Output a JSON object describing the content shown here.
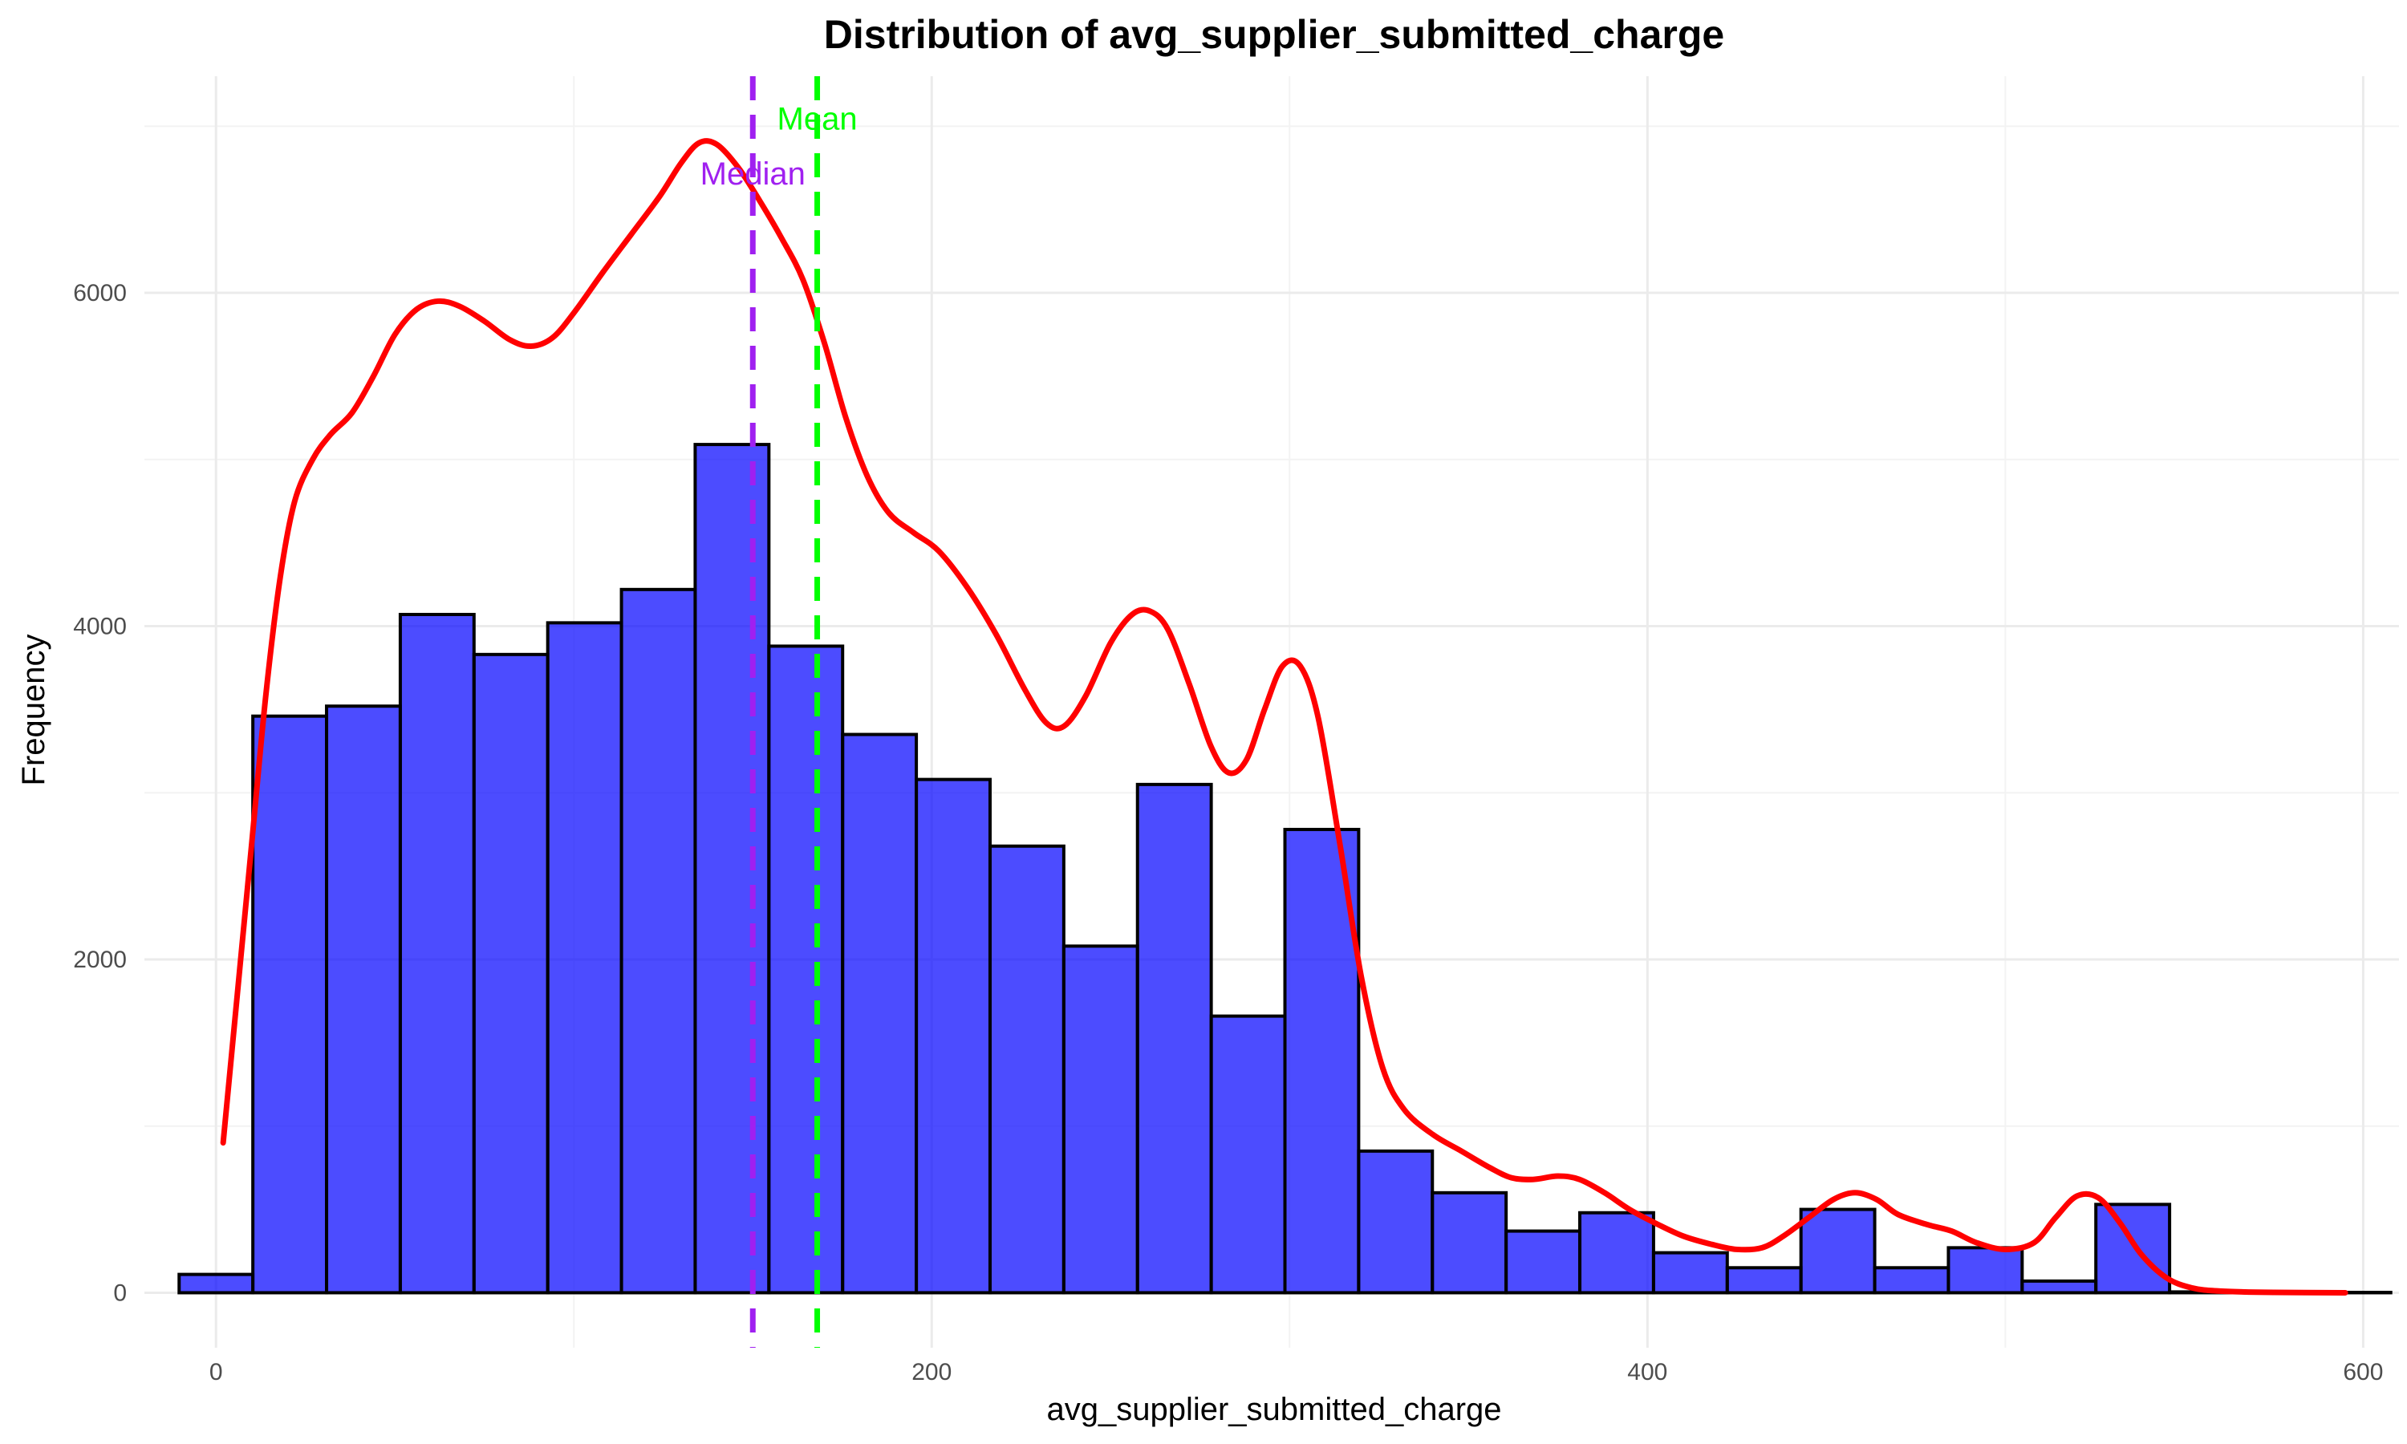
{
  "chart_data": {
    "type": "bar",
    "title": "Distribution of avg_supplier_submitted_charge",
    "xlabel": "avg_supplier_submitted_charge",
    "ylabel": "Frequency",
    "xlim": [
      -20,
      610
    ],
    "ylim": [
      -330,
      7300
    ],
    "x_ticks": [
      0,
      200,
      400,
      600
    ],
    "y_ticks": [
      0,
      2000,
      4000,
      6000
    ],
    "x_tick_labels": [
      "0",
      "200",
      "400",
      "600"
    ],
    "y_tick_labels": [
      "0",
      "2000",
      "4000",
      "6000"
    ],
    "grid": true,
    "bar_color": "#0000FF",
    "bar_opacity": 0.7,
    "bin_width": 20.6,
    "bins": [
      {
        "start": -10.3,
        "end": 10.3,
        "count": 110
      },
      {
        "start": 10.3,
        "end": 30.9,
        "count": 3460
      },
      {
        "start": 30.9,
        "end": 51.5,
        "count": 3520
      },
      {
        "start": 51.5,
        "end": 72.1,
        "count": 4070
      },
      {
        "start": 72.1,
        "end": 92.7,
        "count": 3830
      },
      {
        "start": 92.7,
        "end": 113.3,
        "count": 4020
      },
      {
        "start": 113.3,
        "end": 133.9,
        "count": 4220
      },
      {
        "start": 133.9,
        "end": 154.5,
        "count": 5090
      },
      {
        "start": 154.5,
        "end": 175.1,
        "count": 3880
      },
      {
        "start": 175.1,
        "end": 195.7,
        "count": 3350
      },
      {
        "start": 195.7,
        "end": 216.3,
        "count": 3080
      },
      {
        "start": 216.3,
        "end": 236.9,
        "count": 2680
      },
      {
        "start": 236.9,
        "end": 257.5,
        "count": 2080
      },
      {
        "start": 257.5,
        "end": 278.1,
        "count": 3050
      },
      {
        "start": 278.1,
        "end": 298.7,
        "count": 1660
      },
      {
        "start": 298.7,
        "end": 319.3,
        "count": 2780
      },
      {
        "start": 319.3,
        "end": 339.9,
        "count": 850
      },
      {
        "start": 339.9,
        "end": 360.5,
        "count": 600
      },
      {
        "start": 360.5,
        "end": 381.1,
        "count": 370
      },
      {
        "start": 381.1,
        "end": 401.7,
        "count": 480
      },
      {
        "start": 401.7,
        "end": 422.3,
        "count": 240
      },
      {
        "start": 422.3,
        "end": 442.9,
        "count": 150
      },
      {
        "start": 442.9,
        "end": 463.5,
        "count": 500
      },
      {
        "start": 463.5,
        "end": 484.1,
        "count": 150
      },
      {
        "start": 484.1,
        "end": 504.7,
        "count": 270
      },
      {
        "start": 504.7,
        "end": 525.3,
        "count": 70
      },
      {
        "start": 525.3,
        "end": 545.9,
        "count": 530
      },
      {
        "start": 545.9,
        "end": 566.5,
        "count": 5
      },
      {
        "start": 566.5,
        "end": 587.1,
        "count": 3
      },
      {
        "start": 587.1,
        "end": 607.7,
        "count": 2
      }
    ],
    "density_curve": {
      "color": "#FF0000",
      "points": [
        [
          2,
          900
        ],
        [
          6,
          1800
        ],
        [
          10,
          2700
        ],
        [
          14,
          3600
        ],
        [
          18,
          4300
        ],
        [
          22,
          4750
        ],
        [
          27,
          5000
        ],
        [
          32,
          5150
        ],
        [
          38,
          5280
        ],
        [
          44,
          5500
        ],
        [
          50,
          5750
        ],
        [
          56,
          5900
        ],
        [
          62,
          5950
        ],
        [
          68,
          5920
        ],
        [
          75,
          5830
        ],
        [
          82,
          5720
        ],
        [
          88,
          5680
        ],
        [
          94,
          5730
        ],
        [
          100,
          5880
        ],
        [
          108,
          6120
        ],
        [
          116,
          6350
        ],
        [
          124,
          6580
        ],
        [
          130,
          6780
        ],
        [
          135,
          6900
        ],
        [
          140,
          6890
        ],
        [
          146,
          6750
        ],
        [
          152,
          6550
        ],
        [
          158,
          6330
        ],
        [
          164,
          6080
        ],
        [
          170,
          5700
        ],
        [
          176,
          5250
        ],
        [
          182,
          4900
        ],
        [
          188,
          4680
        ],
        [
          195,
          4560
        ],
        [
          202,
          4450
        ],
        [
          210,
          4230
        ],
        [
          218,
          3950
        ],
        [
          226,
          3620
        ],
        [
          232,
          3420
        ],
        [
          237,
          3400
        ],
        [
          243,
          3580
        ],
        [
          250,
          3900
        ],
        [
          256,
          4070
        ],
        [
          261,
          4090
        ],
        [
          266,
          3980
        ],
        [
          272,
          3650
        ],
        [
          278,
          3280
        ],
        [
          283,
          3120
        ],
        [
          288,
          3200
        ],
        [
          293,
          3500
        ],
        [
          298,
          3760
        ],
        [
          303,
          3760
        ],
        [
          308,
          3450
        ],
        [
          314,
          2700
        ],
        [
          320,
          1900
        ],
        [
          326,
          1350
        ],
        [
          332,
          1100
        ],
        [
          340,
          950
        ],
        [
          348,
          850
        ],
        [
          356,
          750
        ],
        [
          362,
          690
        ],
        [
          368,
          680
        ],
        [
          375,
          700
        ],
        [
          381,
          680
        ],
        [
          388,
          600
        ],
        [
          395,
          500
        ],
        [
          402,
          420
        ],
        [
          410,
          340
        ],
        [
          418,
          290
        ],
        [
          425,
          260
        ],
        [
          432,
          270
        ],
        [
          438,
          340
        ],
        [
          445,
          450
        ],
        [
          452,
          560
        ],
        [
          458,
          600
        ],
        [
          464,
          560
        ],
        [
          470,
          470
        ],
        [
          478,
          410
        ],
        [
          485,
          370
        ],
        [
          492,
          300
        ],
        [
          500,
          260
        ],
        [
          508,
          300
        ],
        [
          514,
          450
        ],
        [
          520,
          580
        ],
        [
          526,
          570
        ],
        [
          532,
          420
        ],
        [
          538,
          230
        ],
        [
          545,
          90
        ],
        [
          552,
          30
        ],
        [
          560,
          10
        ],
        [
          575,
          2
        ],
        [
          595,
          0
        ]
      ]
    },
    "reference_lines": [
      {
        "label": "Median",
        "value": 150,
        "color": "#A020F0",
        "style": "dashed"
      },
      {
        "label": "Mean",
        "value": 168,
        "color": "#00FF00",
        "style": "dashed"
      }
    ]
  }
}
